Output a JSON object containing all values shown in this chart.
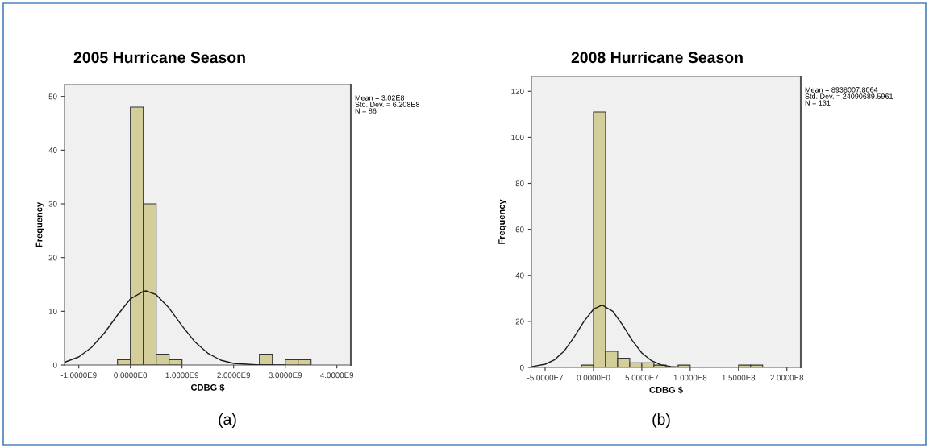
{
  "chart_data": [
    {
      "type": "histogram",
      "title": "2005 Hurricane Season",
      "xlabel": "CDBG $",
      "ylabel": "Frequency",
      "series": [
        {
          "color": "#d4cf9a",
          "bins": [
            -250000000,
            0,
            250000000,
            500000000,
            750000000,
            1000000000,
            1250000000,
            1500000000,
            1750000000,
            2000000000,
            2250000000,
            2500000000,
            2750000000,
            3000000000,
            3250000000,
            3500000000
          ],
          "values": [
            1,
            48,
            30,
            2,
            1,
            0,
            0,
            0,
            0,
            0,
            0,
            2,
            0,
            1,
            1
          ]
        },
        {
          "type": "line",
          "color": "#1a1a1a",
          "x": [
            -1276000000,
            -1250000000,
            -1000000000,
            -750000000,
            -500000000,
            -250000000,
            0,
            250000000,
            302000000,
            500000000,
            750000000,
            1000000000,
            1250000000,
            1500000000,
            1750000000,
            2000000000,
            2500000000,
            3000000000
          ],
          "values": [
            0.5,
            0.6,
            1.5,
            3.3,
            6.0,
            9.3,
            12.3,
            13.7,
            13.8,
            13.1,
            10.6,
            7.3,
            4.3,
            2.2,
            0.9,
            0.3,
            0.0,
            0.0
          ]
        }
      ],
      "xlim": [
        -1276000000,
        4270000000
      ],
      "xticks": [
        {
          "value": -1000000000,
          "label": "-1.0000E9"
        },
        {
          "value": 0,
          "label": "0.0000E0"
        },
        {
          "value": 1000000000,
          "label": "1.0000E9"
        },
        {
          "value": 2000000000,
          "label": "2.0000E9"
        },
        {
          "value": 3000000000,
          "label": "3.0000E9"
        },
        {
          "value": 4000000000,
          "label": "4.0000E9"
        }
      ],
      "ylim": [
        0,
        52.2
      ],
      "yticks": [
        0,
        10,
        20,
        30,
        40,
        50
      ],
      "grid": false,
      "legend": false,
      "annotations": [
        "Mean = 3.02E8\nStd. Dev. = 6.208E8\nN = 86",
        "(a)"
      ]
    },
    {
      "type": "histogram",
      "title": "2008 Hurricane Season",
      "xlabel": "CDBG $",
      "ylabel": "Frequency",
      "series": [
        {
          "color": "#d4cf9a",
          "bins": [
            -12500000,
            0,
            12500000,
            25000000,
            37500000,
            50000000,
            62500000,
            75000000,
            87500000,
            100000000,
            112500000,
            125000000,
            137500000,
            150000000,
            162500000,
            175000000
          ],
          "values": [
            1,
            111,
            7,
            4,
            2,
            2,
            1,
            0,
            1,
            0,
            0,
            0,
            0,
            1,
            1
          ]
        },
        {
          "type": "line",
          "color": "#1a1a1a",
          "x": [
            -64200000,
            -50000000,
            -40000000,
            -30000000,
            -20000000,
            -10000000,
            0,
            8938000,
            20000000,
            30000000,
            40000000,
            50000000,
            60000000,
            70000000,
            80000000,
            90000000,
            100000000
          ],
          "values": [
            0.3,
            1.4,
            3.4,
            7.3,
            13.2,
            19.9,
            25.3,
            27.1,
            24.4,
            18.5,
            11.8,
            6.3,
            2.9,
            1.1,
            0.4,
            0.1,
            0.0
          ]
        }
      ],
      "xlim": [
        -64200000,
        214400000
      ],
      "xticks": [
        {
          "value": -50000000,
          "label": "-5.0000E7"
        },
        {
          "value": 0,
          "label": "0.0000E0"
        },
        {
          "value": 50000000,
          "label": "5.0000E7"
        },
        {
          "value": 100000000,
          "label": "1.0000E8"
        },
        {
          "value": 150000000,
          "label": "1.5000E8"
        },
        {
          "value": 200000000,
          "label": "2.0000E8"
        }
      ],
      "ylim": [
        0,
        126.4
      ],
      "yticks": [
        0,
        20,
        40,
        60,
        80,
        100,
        120
      ],
      "grid": false,
      "legend": false,
      "annotations": [
        "Mean = 8938007.8064\nStd. Dev. = 24090689.5961\nN = 131",
        "(b)"
      ]
    }
  ]
}
